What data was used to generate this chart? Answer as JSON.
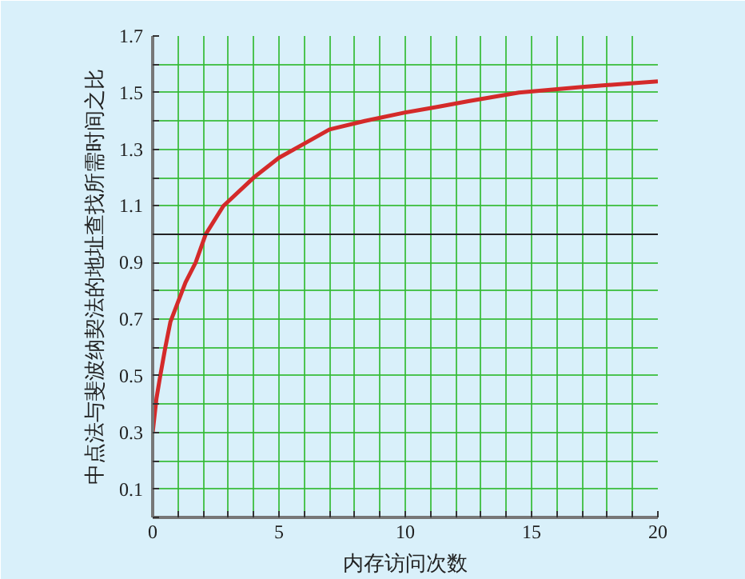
{
  "chart_data": {
    "type": "line",
    "xlabel": "内存访问次数",
    "ylabel": "中点法与斐波纳契法的地址查找所需时间之比",
    "x": [
      0,
      0.15,
      0.3,
      0.5,
      0.7,
      1,
      1.3,
      1.7,
      2.1,
      2.8,
      4,
      5,
      6,
      7,
      8.4,
      10,
      11.3,
      12.5,
      14.5,
      17,
      20
    ],
    "series": [
      {
        "color": "#d42a2a",
        "values": [
          0.3,
          0.42,
          0.5,
          0.6,
          0.69,
          0.76,
          0.83,
          0.9,
          1.0,
          1.1,
          1.2,
          1.27,
          1.32,
          1.37,
          1.4,
          1.43,
          1.45,
          1.47,
          1.5,
          1.52,
          1.54
        ]
      }
    ],
    "xlim": [
      0,
      20
    ],
    "ylim": [
      0,
      1.7
    ],
    "xticks": [
      0,
      {
        "value": 1,
        "label": null
      },
      {
        "value": 2,
        "label": null
      },
      {
        "value": 3,
        "label": null
      },
      {
        "value": 4,
        "label": null
      },
      5,
      {
        "value": 6,
        "label": null
      },
      {
        "value": 7,
        "label": null
      },
      {
        "value": 8,
        "label": null
      },
      {
        "value": 9,
        "label": null
      },
      10,
      {
        "value": 11,
        "label": null
      },
      {
        "value": 12,
        "label": null
      },
      {
        "value": 13,
        "label": null
      },
      {
        "value": 14,
        "label": null
      },
      15,
      {
        "value": 16,
        "label": null
      },
      {
        "value": 17,
        "label": null
      },
      {
        "value": 18,
        "label": null
      },
      {
        "value": 19,
        "label": null
      },
      20
    ],
    "yticks": [
      {
        "value": 0,
        "label": null
      },
      0.1,
      {
        "value": 0.2,
        "label": null
      },
      0.3,
      {
        "value": 0.4,
        "label": null
      },
      0.5,
      {
        "value": 0.6,
        "label": null
      },
      0.7,
      {
        "value": 0.8,
        "label": null
      },
      0.9,
      {
        "value": 1.0,
        "label": null
      },
      1.1,
      {
        "value": 1.2,
        "label": null
      },
      1.3,
      {
        "value": 1.4,
        "label": null
      },
      1.5,
      {
        "value": 1.6,
        "label": null
      },
      1.7
    ],
    "grid": true,
    "line_style": "solid",
    "ref_lines": [
      {
        "axis": "y",
        "value": 1.0,
        "color": "#222222"
      }
    ]
  }
}
